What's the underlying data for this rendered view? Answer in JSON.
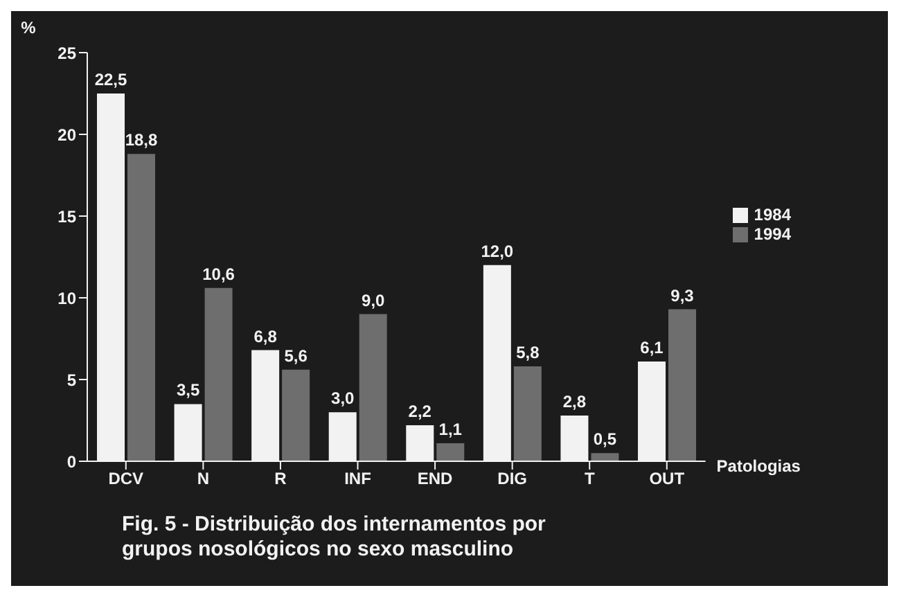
{
  "chart_data": {
    "type": "bar",
    "title": "Fig. 5 - Distribuição dos internamentos por grupos nosológicos no sexo masculino",
    "xlabel": "Patologias",
    "ylabel": "%",
    "categories": [
      "DCV",
      "N",
      "R",
      "INF",
      "END",
      "DIG",
      "T",
      "OUT"
    ],
    "series": [
      {
        "name": "1984",
        "color": "#f2f2f2",
        "values": [
          22.5,
          3.5,
          6.8,
          3.0,
          2.2,
          12.0,
          2.8,
          6.1
        ],
        "value_labels": [
          "22,5",
          "3,5",
          "6,8",
          "3,0",
          "2,2",
          "12,0",
          "2,8",
          "6,1"
        ]
      },
      {
        "name": "1994",
        "color": "#6e6e6e",
        "values": [
          18.8,
          10.6,
          5.6,
          9.0,
          1.1,
          5.8,
          0.5,
          9.3
        ],
        "value_labels": [
          "18,8",
          "10,6",
          "5,6",
          "9,0",
          "1,1",
          "5,8",
          "0,5",
          "9,3"
        ]
      }
    ],
    "ylim": [
      0,
      25
    ],
    "yticks": [
      0,
      5,
      10,
      15,
      20,
      25
    ],
    "grid": false,
    "legend": "top right"
  }
}
